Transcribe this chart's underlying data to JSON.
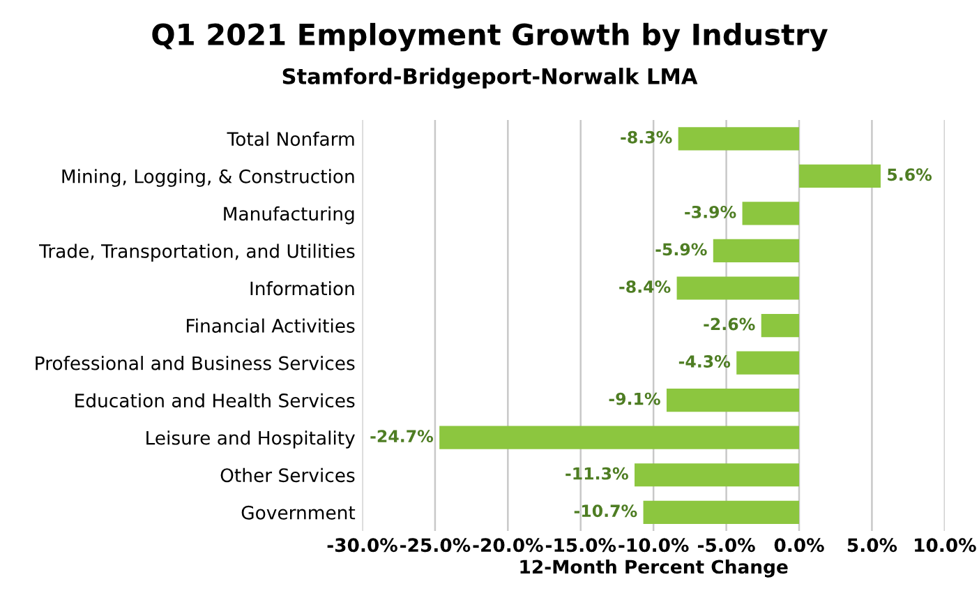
{
  "chart_data": {
    "type": "bar",
    "orientation": "horizontal",
    "title": "Q1 2021 Employment Growth by Industry",
    "subtitle": "Stamford-Bridgeport-Norwalk LMA",
    "xlabel": "12-Month Percent Change",
    "categories": [
      "Total Nonfarm",
      "Mining, Logging, & Construction",
      "Manufacturing",
      "Trade, Transportation, and Utilities",
      "Information",
      "Financial Activities",
      "Professional and Business Services",
      "Education and Health Services",
      "Leisure and Hospitality",
      "Other Services",
      "Government"
    ],
    "values": [
      -8.3,
      5.6,
      -3.9,
      -5.9,
      -8.4,
      -2.6,
      -4.3,
      -9.1,
      -24.7,
      -11.3,
      -10.7
    ],
    "value_labels": [
      "-8.3%",
      "5.6%",
      "-3.9%",
      "-5.9%",
      "-8.4%",
      "-2.6%",
      "-4.3%",
      "-9.1%",
      "-24.7%",
      "-11.3%",
      "-10.7%"
    ],
    "color": "#8cc63f",
    "xlim": [
      -30,
      10
    ],
    "xticks": [
      {
        "value": -30,
        "label": "-30.0%"
      },
      {
        "value": -25,
        "label": "-25.0%"
      },
      {
        "value": -20,
        "label": "-20.0%"
      },
      {
        "value": -15,
        "label": "-15.0%"
      },
      {
        "value": -10,
        "label": "-10.0%"
      },
      {
        "value": -5,
        "label": "-5.0%"
      },
      {
        "value": 0,
        "label": "0.0%"
      },
      {
        "value": 5,
        "label": "5.0%"
      },
      {
        "value": 10,
        "label": "10.0%"
      }
    ],
    "grid": "x"
  }
}
